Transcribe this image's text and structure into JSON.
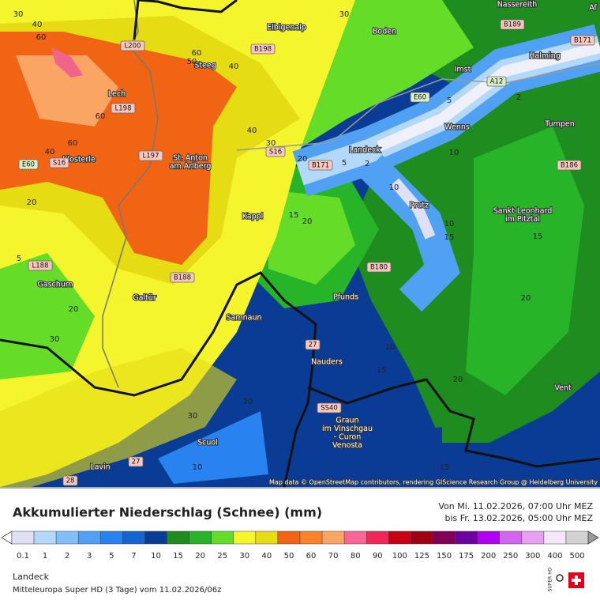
{
  "map": {
    "places": [
      [
        "Nassereith"
      ],
      [
        "Elbigenalp"
      ],
      [
        "Boden"
      ],
      [
        "Steeg"
      ],
      [
        "Imst"
      ],
      [
        "Halming"
      ],
      [
        "Lech"
      ],
      [
        "Wenns"
      ],
      [
        "Tumpen"
      ],
      [
        "Landeck"
      ],
      [
        "Klosterle"
      ],
      [
        "St. Anton",
        "am Arlberg"
      ],
      [
        "Prutz"
      ],
      [
        "Sankt Leonhard",
        "im Pitztal"
      ],
      [
        "Kappl"
      ],
      [
        "Gaschurn"
      ],
      [
        "Pfunds"
      ],
      [
        "Galtür"
      ],
      [
        "Samnaun"
      ],
      [
        "Nauders"
      ],
      [
        "Vent"
      ],
      [
        "Graun",
        "im Vinschgau",
        "- Curon",
        "Venosta"
      ],
      [
        "Scuol"
      ],
      [
        "Lavin"
      ],
      [
        "Af"
      ]
    ],
    "roads": [
      "L200",
      "B198",
      "B189",
      "B171",
      "A12",
      "E60",
      "L198",
      "L197",
      "S16",
      "E60",
      "S16",
      "B171",
      "B186",
      "L188",
      "B188",
      "B180",
      "27",
      "SS40",
      "27",
      "28"
    ],
    "contour_labels": [
      30,
      40,
      60,
      60,
      50,
      40,
      30,
      60,
      60,
      40,
      40,
      30,
      20,
      5,
      2,
      5,
      2,
      10,
      20,
      15,
      20,
      10,
      10,
      15,
      15,
      5,
      20,
      30,
      20,
      10,
      15,
      20,
      30,
      20,
      10,
      15
    ],
    "attribution": "Map data © OpenStreetMap contributors, rendering GIScience Research Group @ Heidelberg University"
  },
  "legend": {
    "title": "Akkumulierter Niederschlag (Schnee) (mm)",
    "period_from": "Von Mi. 11.02.2026, 07:00 Uhr MEZ",
    "period_to": "bis Fr. 13.02.2026, 05:00 Uhr MEZ",
    "levels": [
      {
        "value": 0.1,
        "color": "#e0e0f4"
      },
      {
        "value": 1,
        "color": "#b4d8fa"
      },
      {
        "value": 2,
        "color": "#82bef8"
      },
      {
        "value": 3,
        "color": "#50a0f4"
      },
      {
        "value": 5,
        "color": "#2882f0"
      },
      {
        "value": 7,
        "color": "#1464d2"
      },
      {
        "value": 10,
        "color": "#0a3c96"
      },
      {
        "value": 15,
        "color": "#1e8c1e"
      },
      {
        "value": 20,
        "color": "#28b428"
      },
      {
        "value": 25,
        "color": "#64dc28"
      },
      {
        "value": 30,
        "color": "#f5f52d"
      },
      {
        "value": 40,
        "color": "#e6dc14"
      },
      {
        "value": 50,
        "color": "#f06414"
      },
      {
        "value": 60,
        "color": "#fa8228"
      },
      {
        "value": 70,
        "color": "#faa564"
      },
      {
        "value": 80,
        "color": "#fa6496"
      },
      {
        "value": 90,
        "color": "#f0285a"
      },
      {
        "value": 100,
        "color": "#c80014"
      },
      {
        "value": 125,
        "color": "#a00014"
      },
      {
        "value": 150,
        "color": "#82005a"
      },
      {
        "value": 175,
        "color": "#6e00a0"
      },
      {
        "value": 200,
        "color": "#b400f0"
      },
      {
        "value": 250,
        "color": "#d264f0"
      },
      {
        "value": 300,
        "color": "#e6a0f0"
      },
      {
        "value": 400,
        "color": "#f5e6fa"
      },
      {
        "value": 500,
        "color": "#d2d2d2"
      }
    ]
  },
  "footer": {
    "location": "Landeck",
    "model": "Mitteleuropa Super HD (3 Tage) vom 11.02.2026/06z",
    "logo": "SUPER HD"
  }
}
